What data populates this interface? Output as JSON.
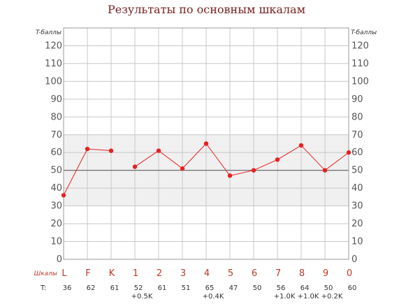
{
  "title": "Результаты по основным шкалам",
  "chart_data": {
    "type": "line",
    "title": "Результаты по основным шкалам",
    "y_axis_title_left": "T-баллы",
    "y_axis_title_right": "T-баллы",
    "x_axis_title": "Шкалы",
    "ylim": [
      0,
      130
    ],
    "y_ticks": [
      0,
      10,
      20,
      30,
      40,
      50,
      60,
      70,
      80,
      90,
      100,
      110,
      120
    ],
    "normal_band": [
      30,
      70
    ],
    "reference_line": 50,
    "grid": true,
    "line_color": "#e82020",
    "band_color": "#f0f0f0",
    "categories": [
      "L",
      "F",
      "K",
      "1",
      "2",
      "3",
      "4",
      "5",
      "6",
      "7",
      "8",
      "9",
      "0"
    ],
    "values": [
      36,
      62,
      61,
      52,
      61,
      51,
      65,
      47,
      50,
      56,
      64,
      50,
      60
    ],
    "segment_breaks_after": [
      2
    ],
    "t_row_prefix": "T:",
    "t_values": [
      "36",
      "62",
      "61",
      "52",
      "61",
      "51",
      "65",
      "47",
      "50",
      "56",
      "64",
      "50",
      "60"
    ],
    "corrections": [
      "",
      "",
      "",
      "+0.5K",
      "",
      "",
      "+0.4K",
      "",
      "",
      "+1.0K",
      "+1.0K",
      "+0.2K",
      ""
    ]
  }
}
